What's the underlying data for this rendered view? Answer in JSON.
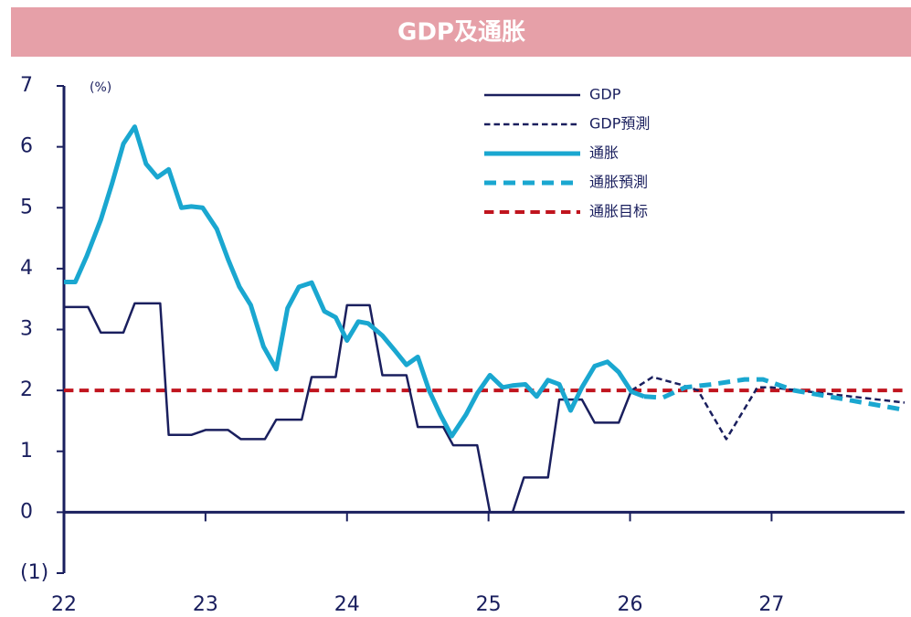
{
  "chart_data": {
    "type": "line",
    "title": "GDP及通胀",
    "ylabel": "(%)",
    "xlim": [
      22,
      27.94
    ],
    "xticks": [
      22,
      23,
      24,
      25,
      26,
      27
    ],
    "ylim": [
      -1,
      7
    ],
    "yticks": [
      {
        "value": -1,
        "label": "(1)"
      },
      0,
      1,
      2,
      3,
      4,
      5,
      6,
      7
    ],
    "legend": "top-right",
    "series": [
      {
        "name": "GDP",
        "color": "#1a1f5e",
        "dashed": false,
        "linewidth": 2.5,
        "x": [
          22.0,
          22.17,
          22.26,
          22.42,
          22.5,
          22.68,
          22.74,
          22.9,
          23.0,
          23.16,
          23.25,
          23.42,
          23.5,
          23.68,
          23.75,
          23.92,
          24.0,
          24.16,
          24.25,
          24.42,
          24.5,
          24.68,
          24.75,
          24.92,
          25.01,
          25.17,
          25.25,
          25.42,
          25.5,
          25.66,
          25.75,
          25.92,
          26.01
        ],
        "values": [
          3.37,
          3.37,
          2.95,
          2.95,
          3.43,
          3.43,
          1.27,
          1.27,
          1.35,
          1.35,
          1.2,
          1.2,
          1.52,
          1.52,
          2.22,
          2.22,
          3.4,
          3.4,
          2.25,
          2.25,
          1.4,
          1.4,
          1.1,
          1.1,
          0,
          0,
          0.57,
          0.57,
          1.85,
          1.85,
          1.47,
          1.47,
          2.0
        ]
      },
      {
        "name": "GDP預測",
        "color": "#1a1f5e",
        "dashed": true,
        "linewidth": 2.5,
        "x": [
          26.01,
          26.16,
          26.35,
          26.48,
          26.68,
          26.9,
          27.0,
          27.94
        ],
        "values": [
          2.0,
          2.22,
          2.1,
          2.0,
          1.2,
          2.05,
          2.05,
          1.8
        ]
      },
      {
        "name": "通胀",
        "color": "#1aa7d0",
        "dashed": false,
        "linewidth": 5,
        "x": [
          22.0,
          22.08,
          22.16,
          22.26,
          22.34,
          22.42,
          22.5,
          22.58,
          22.66,
          22.74,
          22.83,
          22.9,
          22.98,
          23.08,
          23.16,
          23.24,
          23.32,
          23.41,
          23.5,
          23.58,
          23.66,
          23.75,
          23.84,
          23.92,
          24.0,
          24.08,
          24.15,
          24.25,
          24.34,
          24.42,
          24.5,
          24.58,
          24.66,
          24.74,
          24.84,
          24.92,
          25.01,
          25.1,
          25.17,
          25.26,
          25.34,
          25.42,
          25.5,
          25.58,
          25.66,
          25.75,
          25.84,
          25.92,
          26.01,
          26.1
        ],
        "values": [
          3.78,
          3.78,
          4.2,
          4.8,
          5.4,
          6.05,
          6.33,
          5.72,
          5.5,
          5.63,
          5.0,
          5.02,
          5.0,
          4.65,
          4.15,
          3.7,
          3.4,
          2.72,
          2.35,
          3.35,
          3.7,
          3.77,
          3.3,
          3.2,
          2.82,
          3.13,
          3.1,
          2.9,
          2.65,
          2.42,
          2.55,
          2.0,
          1.6,
          1.25,
          1.6,
          1.95,
          2.25,
          2.05,
          2.08,
          2.1,
          1.9,
          2.17,
          2.1,
          1.67,
          2.05,
          2.4,
          2.47,
          2.3,
          1.98,
          1.9
        ]
      },
      {
        "name": "通胀預測",
        "color": "#1aa7d0",
        "dashed": true,
        "linewidth": 5,
        "x": [
          26.1,
          26.23,
          26.39,
          26.58,
          26.81,
          26.94,
          27.16,
          27.94
        ],
        "values": [
          1.9,
          1.88,
          2.05,
          2.1,
          2.18,
          2.18,
          2.0,
          1.68
        ]
      },
      {
        "name": "通胀目标",
        "color": "#c0141e",
        "dashed": true,
        "linewidth": 4,
        "x": [
          22.0,
          27.94
        ],
        "values": [
          2,
          2
        ]
      }
    ]
  }
}
